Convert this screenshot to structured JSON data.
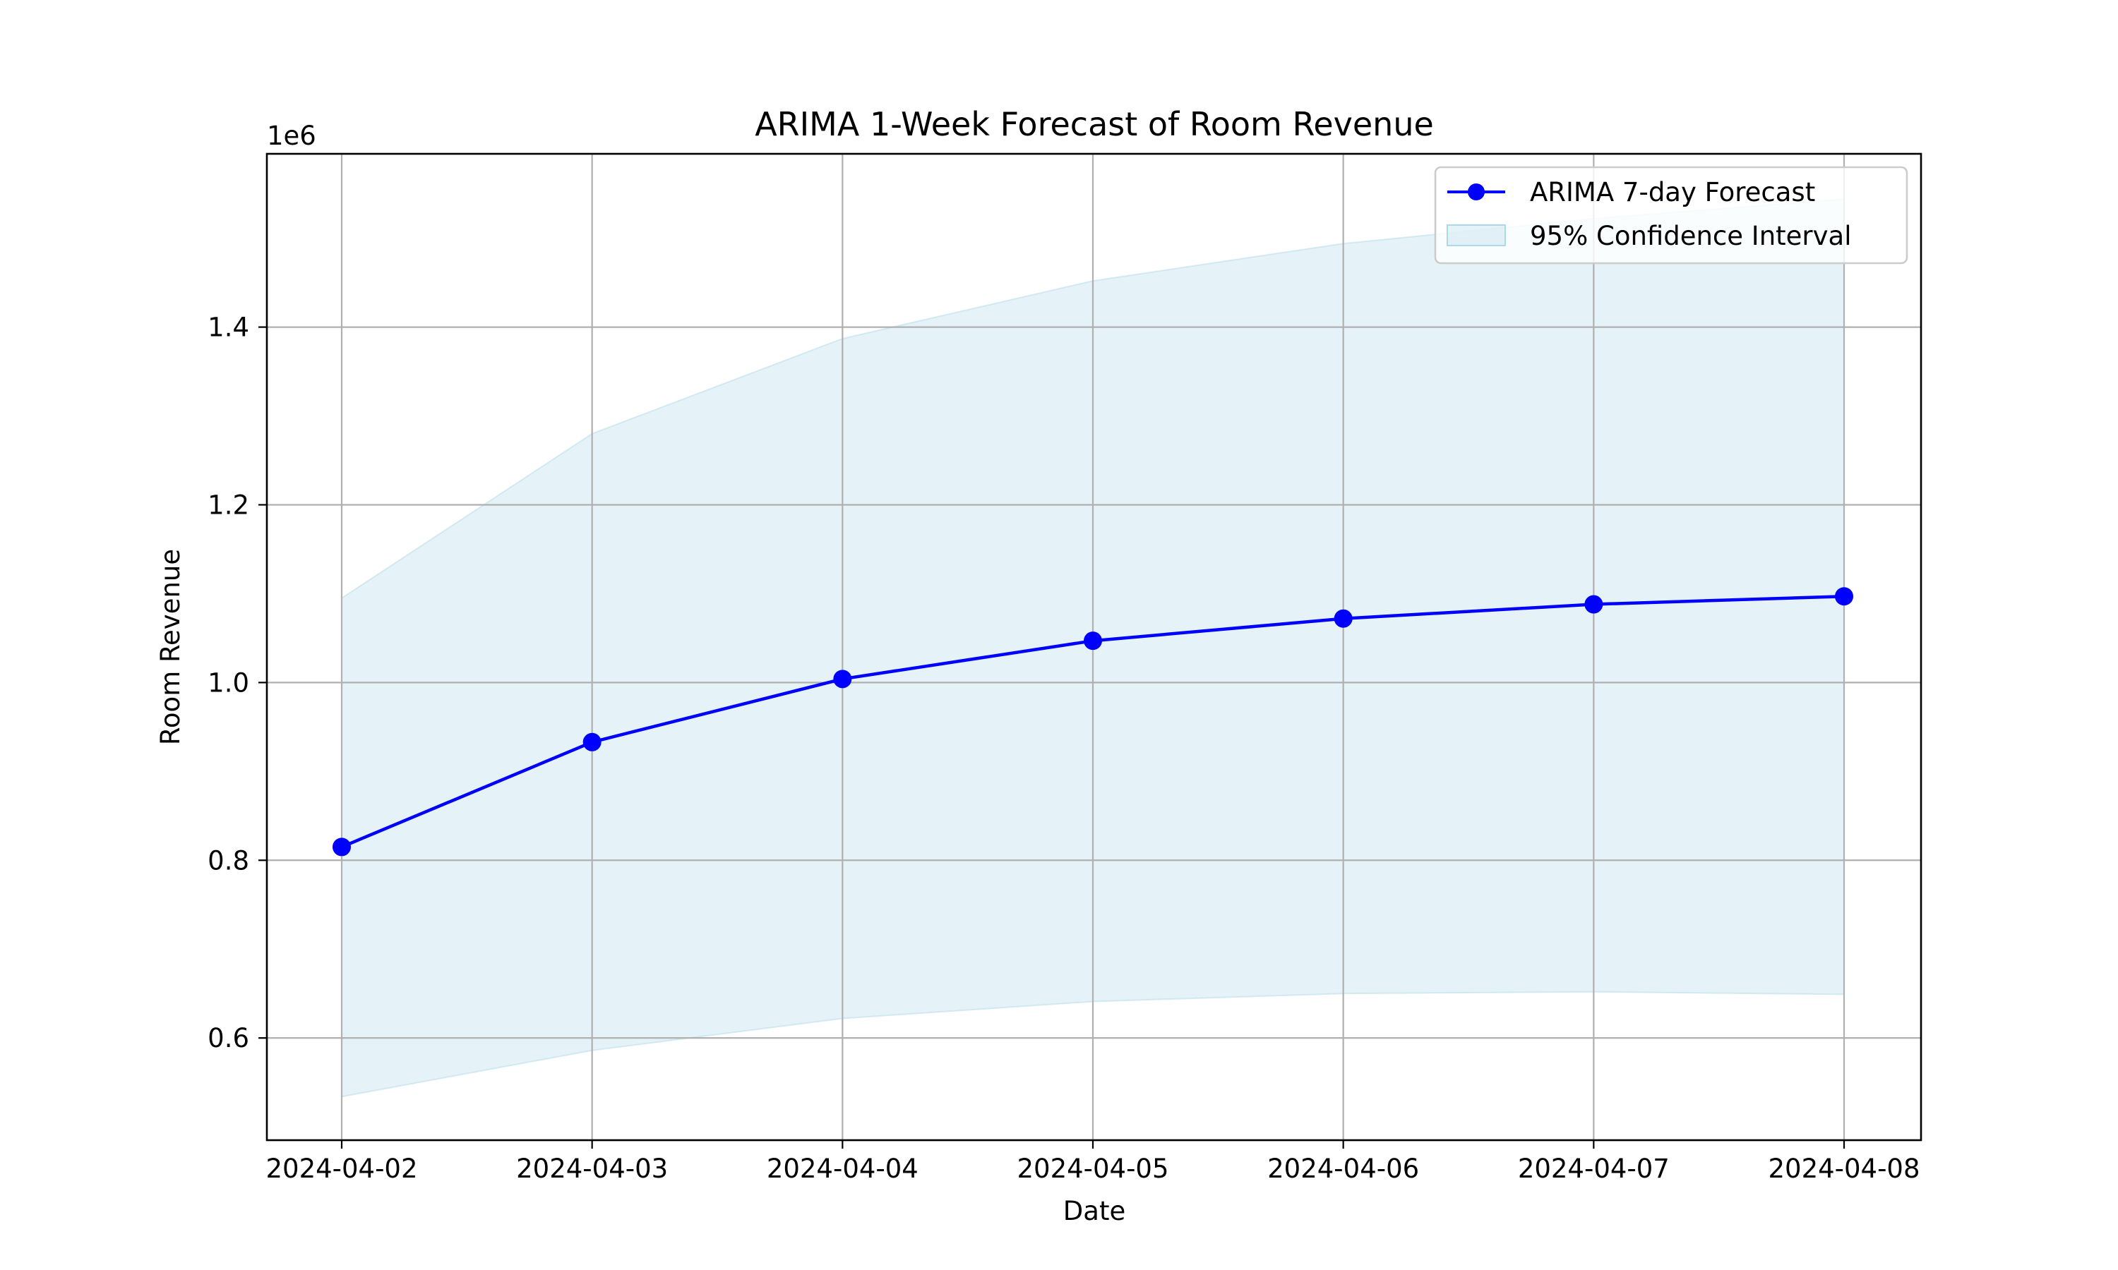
{
  "chart_data": {
    "type": "line",
    "title": "ARIMA 1-Week Forecast of Room Revenue",
    "xlabel": "Date",
    "ylabel": "Room Revenue",
    "y_offset_label": "1e6",
    "x": [
      "2024-04-02",
      "2024-04-03",
      "2024-04-04",
      "2024-04-05",
      "2024-04-06",
      "2024-04-07",
      "2024-04-08"
    ],
    "y_tick_values": [
      0.6,
      0.8,
      1.0,
      1.2,
      1.4
    ],
    "y_tick_labels": [
      "0.6",
      "0.8",
      "1.0",
      "1.2",
      "1.4"
    ],
    "ylim": [
      0.485,
      1.595
    ],
    "y_scale": 1000000,
    "grid": true,
    "legend_position": "upper right",
    "series": [
      {
        "name": "ARIMA 7-day Forecast",
        "kind": "line-marker",
        "color": "#0000ff",
        "values": [
          0.815,
          0.933,
          1.004,
          1.047,
          1.072,
          1.088,
          1.097
        ]
      },
      {
        "name": "95% Confidence Interval",
        "kind": "band",
        "color": "#add8e6",
        "lower": [
          0.534,
          0.586,
          0.622,
          0.641,
          0.65,
          0.652,
          0.649
        ],
        "upper": [
          1.095,
          1.28,
          1.387,
          1.452,
          1.494,
          1.522,
          1.544
        ]
      }
    ]
  }
}
